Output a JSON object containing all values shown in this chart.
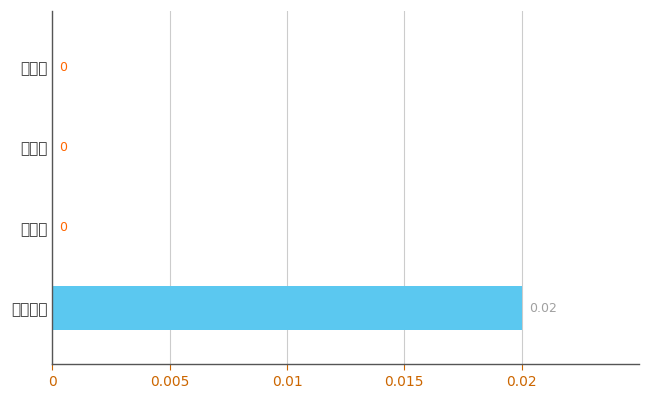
{
  "categories": [
    "鴨川市",
    "県平均",
    "県最大",
    "全国平均"
  ],
  "values": [
    0,
    0,
    0,
    0.02
  ],
  "bar_color": "#5bc8f0",
  "value_color_zero": "#ff6600",
  "value_color_nonzero": "#a0a0a0",
  "background_color": "#ffffff",
  "grid_color": "#cccccc",
  "xlim": [
    0,
    0.025
  ],
  "xticks": [
    0,
    0.005,
    0.01,
    0.015,
    0.02
  ],
  "xtick_labels": [
    "0",
    "0.005",
    "0.01",
    "0.015",
    "0.02"
  ],
  "tick_color": "#cc6600",
  "label_fontsize": 11,
  "tick_fontsize": 10,
  "bar_height": 0.55
}
